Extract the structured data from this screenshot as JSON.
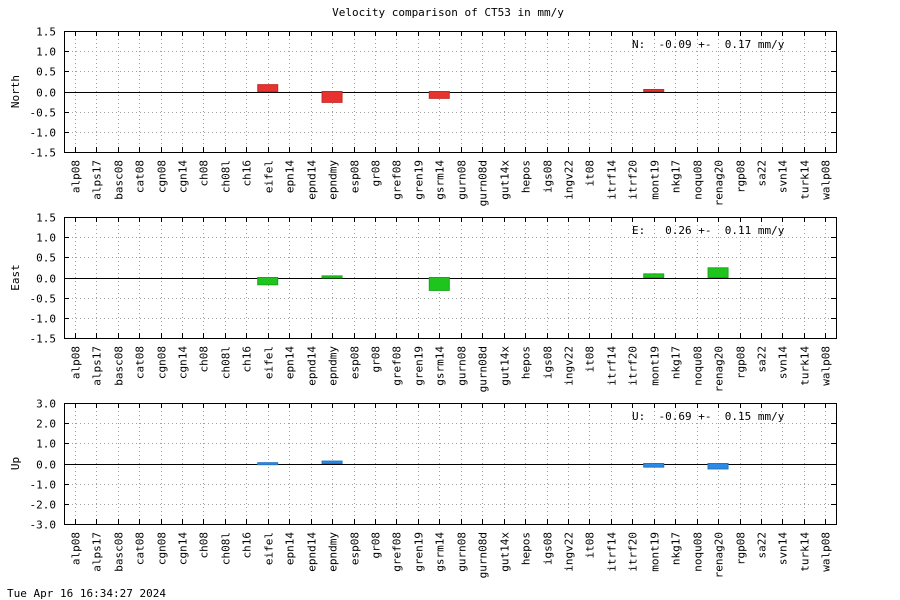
{
  "title": "Velocity comparison of CT53 in mm/y",
  "timestamp": "Tue Apr 16 16:34:27 2024",
  "chart_data": [
    {
      "type": "bar",
      "ylabel": "North",
      "ylim": [
        -1.5,
        1.5
      ],
      "yticks": [
        1.5,
        1.0,
        0.5,
        0.0,
        -0.5,
        -1.0,
        -1.5
      ],
      "ytick_labels": [
        "1.5",
        "1.0",
        "0.5",
        "0.0",
        "-0.5",
        "-1.0",
        "-1.5"
      ],
      "grid": true,
      "color": "#e8322f",
      "annotation": "N:  -0.09 +-  0.17 mm/y",
      "categories": [
        "alp08",
        "alps17",
        "basc08",
        "cat08",
        "cgn08",
        "cgn14",
        "ch08",
        "ch08l",
        "ch16",
        "eifel",
        "epn14",
        "epnd14",
        "epndmy",
        "esp08",
        "gr08",
        "gref08",
        "gren19",
        "gsrm14",
        "gurn08",
        "gurn08d",
        "gut14x",
        "hepos",
        "igs08",
        "ingv22",
        "it08",
        "itrf14",
        "itrf20",
        "mont19",
        "nkg17",
        "noqu08",
        "renag20",
        "rgp08",
        "sa22",
        "svn14",
        "turk14",
        "walp08"
      ],
      "values": [
        null,
        null,
        null,
        null,
        null,
        null,
        null,
        null,
        null,
        0.17,
        null,
        null,
        -0.27,
        null,
        null,
        null,
        null,
        -0.17,
        null,
        null,
        null,
        null,
        null,
        null,
        null,
        null,
        null,
        0.05,
        null,
        null,
        null,
        null,
        null,
        null,
        null,
        null
      ]
    },
    {
      "type": "bar",
      "ylabel": "East",
      "ylim": [
        -1.5,
        1.5
      ],
      "yticks": [
        1.5,
        1.0,
        0.5,
        0.0,
        -0.5,
        -1.0,
        -1.5
      ],
      "ytick_labels": [
        "1.5",
        "1.0",
        "0.5",
        "0.0",
        "-0.5",
        "-1.0",
        "-1.5"
      ],
      "grid": true,
      "color": "#1dc51d",
      "annotation": "E:   0.26 +-  0.11 mm/y",
      "categories": [
        "alp08",
        "alps17",
        "basc08",
        "cat08",
        "cgn08",
        "cgn14",
        "ch08",
        "ch08l",
        "ch16",
        "eifel",
        "epn14",
        "epnd14",
        "epndmy",
        "esp08",
        "gr08",
        "gref08",
        "gren19",
        "gsrm14",
        "gurn08",
        "gurn08d",
        "gut14x",
        "hepos",
        "igs08",
        "ingv22",
        "it08",
        "itrf14",
        "itrf20",
        "mont19",
        "nkg17",
        "noqu08",
        "renag20",
        "rgp08",
        "sa22",
        "svn14",
        "turk14",
        "walp08"
      ],
      "values": [
        null,
        null,
        null,
        null,
        null,
        null,
        null,
        null,
        null,
        -0.18,
        null,
        null,
        0.04,
        null,
        null,
        null,
        null,
        -0.32,
        null,
        null,
        null,
        null,
        null,
        null,
        null,
        null,
        null,
        0.09,
        null,
        null,
        0.24,
        null,
        null,
        null,
        null,
        null
      ]
    },
    {
      "type": "bar",
      "ylabel": "Up",
      "ylim": [
        -3.0,
        3.0
      ],
      "yticks": [
        3.0,
        2.0,
        1.0,
        0.0,
        -1.0,
        -2.0,
        -3.0
      ],
      "ytick_labels": [
        "3.0",
        "2.0",
        "1.0",
        "0.0",
        "-1.0",
        "-2.0",
        "-3.0"
      ],
      "grid": true,
      "color": "#2a8ae6",
      "annotation": "U:  -0.69 +-  0.15 mm/y",
      "categories": [
        "alp08",
        "alps17",
        "basc08",
        "cat08",
        "cgn08",
        "cgn14",
        "ch08",
        "ch08l",
        "ch16",
        "eifel",
        "epn14",
        "epnd14",
        "epndmy",
        "esp08",
        "gr08",
        "gref08",
        "gren19",
        "gsrm14",
        "gurn08",
        "gurn08d",
        "gut14x",
        "hepos",
        "igs08",
        "ingv22",
        "it08",
        "itrf14",
        "itrf20",
        "mont19",
        "nkg17",
        "noqu08",
        "renag20",
        "rgp08",
        "sa22",
        "svn14",
        "turk14",
        "walp08"
      ],
      "values": [
        null,
        null,
        null,
        null,
        null,
        null,
        null,
        null,
        null,
        0.04,
        null,
        null,
        0.12,
        null,
        null,
        null,
        null,
        null,
        null,
        null,
        null,
        null,
        null,
        null,
        null,
        null,
        null,
        -0.18,
        null,
        null,
        -0.27,
        null,
        null,
        null,
        null,
        null
      ]
    }
  ]
}
